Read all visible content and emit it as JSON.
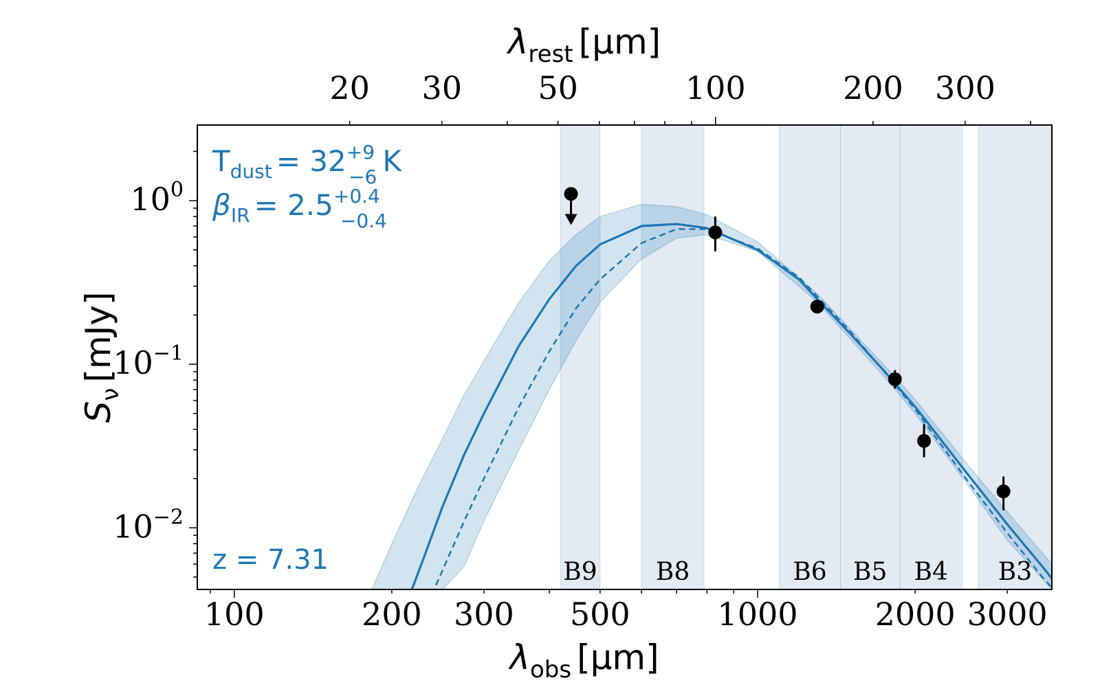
{
  "chart_data": {
    "type": "line",
    "xlabel": {
      "symbol": "λ",
      "sub": "obs",
      "unit": "[μm]"
    },
    "ylabel": {
      "symbol": "S",
      "sub": "ν",
      "unit": "[mJy]"
    },
    "top_xlabel": {
      "symbol": "λ",
      "sub": "rest",
      "unit": "[μm]"
    },
    "xscale": "log",
    "yscale": "log",
    "xlim": [
      85,
      3650
    ],
    "ylim": [
      0.0042,
      2.9
    ],
    "redshift": 7.31,
    "x_ticks": [
      {
        "value": 100,
        "label": "100"
      },
      {
        "value": 200,
        "label": "200"
      },
      {
        "value": 300,
        "label": "300"
      },
      {
        "value": 500,
        "label": "500"
      },
      {
        "value": 1000,
        "label": "1000"
      },
      {
        "value": 2000,
        "label": "2000"
      },
      {
        "value": 3000,
        "label": "3000"
      }
    ],
    "y_ticks": [
      {
        "value": 1,
        "base": "10",
        "exp": "0"
      },
      {
        "value": 0.1,
        "base": "10",
        "exp": "−1"
      },
      {
        "value": 0.01,
        "base": "10",
        "exp": "−2"
      }
    ],
    "top_ticks": [
      {
        "value": 20,
        "label": "20"
      },
      {
        "value": 30,
        "label": "30"
      },
      {
        "value": 50,
        "label": "50"
      },
      {
        "value": 100,
        "label": "100"
      },
      {
        "value": 200,
        "label": "200"
      },
      {
        "value": 300,
        "label": "300"
      }
    ],
    "bands": [
      {
        "name": "B9",
        "x0": 420,
        "x1": 500
      },
      {
        "name": "B8",
        "x0": 600,
        "x1": 790
      },
      {
        "name": "B6",
        "x0": 1100,
        "x1": 1440
      },
      {
        "name": "B5",
        "x0": 1440,
        "x1": 1870
      },
      {
        "name": "B4",
        "x0": 1870,
        "x1": 2460
      },
      {
        "name": "B3",
        "x0": 2640,
        "x1": 3650
      }
    ],
    "series": [
      {
        "style": "solid",
        "x": [
          210,
          230,
          250,
          275,
          300,
          350,
          400,
          450,
          500,
          600,
          700,
          800,
          1000,
          1200,
          1300,
          1500,
          1750,
          2000,
          2500,
          3000,
          3500,
          3650
        ],
        "y": [
          0.003,
          0.0065,
          0.0135,
          0.028,
          0.05,
          0.13,
          0.25,
          0.4,
          0.54,
          0.7,
          0.72,
          0.68,
          0.5,
          0.33,
          0.25,
          0.155,
          0.09,
          0.055,
          0.022,
          0.0105,
          0.0058,
          0.0049
        ]
      },
      {
        "style": "dashed",
        "x": [
          230,
          250,
          275,
          300,
          350,
          400,
          450,
          500,
          600,
          700,
          800,
          1000,
          1200,
          1300,
          1500,
          1750,
          2000,
          2500,
          3000,
          3500,
          3650
        ],
        "y": [
          0.003,
          0.0055,
          0.011,
          0.02,
          0.055,
          0.12,
          0.22,
          0.33,
          0.55,
          0.67,
          0.67,
          0.51,
          0.34,
          0.26,
          0.16,
          0.089,
          0.053,
          0.02,
          0.0093,
          0.005,
          0.0043
        ]
      }
    ],
    "uncertainty_band": {
      "x": [
        175,
        200,
        225,
        250,
        275,
        300,
        350,
        400,
        450,
        500,
        600,
        700,
        800,
        1000,
        1300,
        1750,
        2000,
        2500,
        3000,
        3650
      ],
      "upper": [
        0.003,
        0.008,
        0.018,
        0.035,
        0.065,
        0.105,
        0.24,
        0.43,
        0.62,
        0.8,
        0.95,
        0.92,
        0.82,
        0.56,
        0.27,
        0.098,
        0.061,
        0.025,
        0.0125,
        0.006
      ],
      "lower": [
        0.003,
        0.0042,
        0.0042,
        0.0042,
        0.0058,
        0.011,
        0.03,
        0.07,
        0.14,
        0.24,
        0.44,
        0.59,
        0.62,
        0.49,
        0.24,
        0.083,
        0.05,
        0.019,
        0.0084,
        0.0042
      ]
    },
    "data_points": [
      {
        "x": 830,
        "y": 0.64,
        "y_lo": 0.49,
        "y_hi": 0.8
      },
      {
        "x": 1300,
        "y": 0.225,
        "y_lo": 0.21,
        "y_hi": 0.24
      },
      {
        "x": 1830,
        "y": 0.081,
        "y_lo": 0.071,
        "y_hi": 0.092
      },
      {
        "x": 2080,
        "y": 0.034,
        "y_lo": 0.027,
        "y_hi": 0.043
      },
      {
        "x": 2950,
        "y": 0.0167,
        "y_lo": 0.0128,
        "y_hi": 0.0206
      }
    ],
    "upper_limits": [
      {
        "x": 440,
        "y": 1.1,
        "arrow_to": 0.71
      }
    ],
    "annotations": {
      "tdust": {
        "label": "T",
        "sub": "dust",
        "value": "= 32",
        "sup": "+9",
        "low": "−6",
        "unit": "K"
      },
      "beta": {
        "label": "β",
        "sub": "IR",
        "value": "= 2.5",
        "sup": "+0.4",
        "low": "−0.4"
      },
      "redshift_label": "z = 7.31"
    },
    "colors": {
      "line": "#1f77b4",
      "band_fill": "#1f77b4",
      "alma_band": "#b0c4de",
      "points": "#000000"
    },
    "grid": false
  }
}
